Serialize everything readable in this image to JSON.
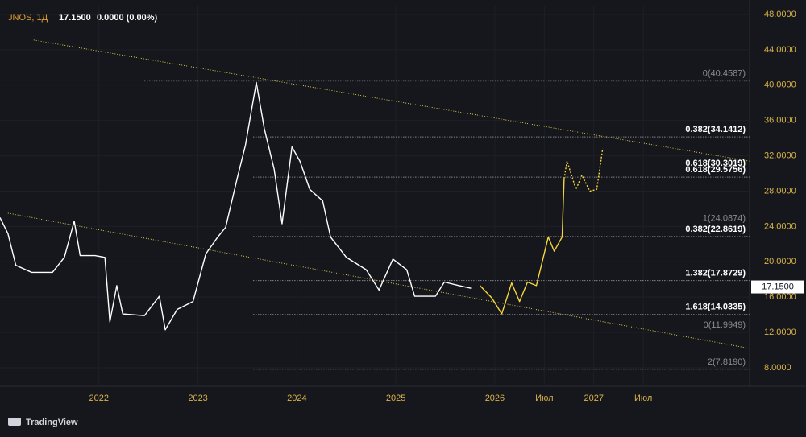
{
  "chart_data": {
    "type": "line",
    "symbol": "JNOS, 1Д",
    "price": "17.1500",
    "change": "0.0000 (0.00%)",
    "last_value": 17.15,
    "last_label": "17.1500",
    "brand": "TradingView",
    "xlim": [
      2021.0,
      2028.574
    ],
    "ylim": [
      5.9,
      48.91
    ],
    "xticks": [
      2022,
      2023,
      2024,
      2025,
      2026,
      {
        "value": 2026.5,
        "label": "Июл"
      },
      2027,
      {
        "value": 2027.5,
        "label": "Июл"
      }
    ],
    "yticks": [
      {
        "value": 8,
        "label": "8.0000"
      },
      {
        "value": 12,
        "label": "12.0000"
      },
      {
        "value": 16,
        "label": "16.0000"
      },
      {
        "value": 20,
        "label": "20.0000"
      },
      {
        "value": 24,
        "label": "24.0000"
      },
      {
        "value": 28,
        "label": "28.0000"
      },
      {
        "value": 32,
        "label": "32.0000"
      },
      {
        "value": 36,
        "label": "36.0000"
      },
      {
        "value": 40,
        "label": "40.0000"
      },
      {
        "value": 44,
        "label": "44.0000"
      },
      {
        "value": 48,
        "label": "48.0000"
      }
    ],
    "series": [
      {
        "color": "#ffffff",
        "dash": false,
        "x": [
          2021.0,
          2021.08,
          2021.16,
          2021.32,
          2021.53,
          2021.65,
          2021.75,
          2021.81,
          2021.96,
          2022.06,
          2022.11,
          2022.18,
          2022.24,
          2022.46,
          2022.61,
          2022.67,
          2022.79,
          2022.95,
          2023.08,
          2023.2,
          2023.28,
          2023.4,
          2023.48,
          2023.59,
          2023.67,
          2023.77,
          2023.85,
          2023.95,
          2024.03,
          2024.13,
          2024.26,
          2024.34,
          2024.5,
          2024.7,
          2024.83,
          2024.97,
          2025.11,
          2025.19,
          2025.4,
          2025.49,
          2025.64,
          2025.76
        ],
        "values": [
          25.0,
          23.2,
          19.6,
          18.8,
          18.8,
          20.5,
          24.6,
          20.7,
          20.7,
          20.5,
          13.2,
          17.3,
          14.1,
          13.9,
          16.1,
          12.3,
          14.6,
          15.5,
          20.9,
          22.8,
          23.9,
          29.6,
          33.2,
          40.3,
          35.1,
          30.5,
          24.3,
          33.0,
          31.4,
          28.2,
          26.9,
          22.8,
          20.5,
          19.1,
          16.8,
          20.3,
          19.1,
          16.1,
          16.1,
          17.7,
          17.3,
          17.0
        ]
      },
      {
        "color": "#f5d63c",
        "dash": false,
        "x": [
          2025.85,
          2025.97,
          2026.07,
          2026.17,
          2026.25,
          2026.33,
          2026.42,
          2026.54,
          2026.6,
          2026.68,
          2026.7
        ],
        "values": [
          17.3,
          15.9,
          14.1,
          17.6,
          15.5,
          17.7,
          17.3,
          22.8,
          21.2,
          22.8,
          29.4
        ]
      },
      {
        "color": "#f5d63c",
        "dash": true,
        "x": [
          2026.7,
          2026.73,
          2026.82,
          2026.88,
          2026.96,
          2027.03,
          2027.09
        ],
        "values": [
          29.4,
          31.4,
          28.2,
          29.8,
          28.0,
          28.2,
          32.8
        ]
      }
    ],
    "trendlines": [
      {
        "color": "#d8c94a",
        "x": [
          2021.34,
          2028.57
        ],
        "values": [
          45.1,
          31.4
        ]
      },
      {
        "color": "#d8c94a",
        "x": [
          2021.08,
          2028.57
        ],
        "values": [
          25.5,
          10.2
        ]
      }
    ],
    "fib_levels": [
      {
        "label": "0(40.4587)",
        "value": 40.4587,
        "color": "#8a8d96",
        "x_start": 2022.46
      },
      {
        "label": "0.382(34.1412)",
        "value": 34.1412,
        "color": "#ffffff",
        "x_start": 2023.56
      },
      {
        "label": "0.618(30.3019)",
        "value": 30.3019,
        "color": "#ffffff"
      },
      {
        "label": "0.618(29.5756)",
        "value": 29.5756,
        "color": "#ffffff",
        "x_start": 2023.56
      },
      {
        "label": "1(24.0874)",
        "value": 24.0874,
        "color": "#8a8d96"
      },
      {
        "label": "0.382(22.8619)",
        "value": 22.8619,
        "color": "#ffffff",
        "x_start": 2023.56
      },
      {
        "label": "1.382(17.8729)",
        "value": 17.8729,
        "color": "#ffffff",
        "x_start": 2023.56
      },
      {
        "label": "1.618(14.0335)",
        "value": 14.0335,
        "color": "#ffffff",
        "x_start": 2023.56
      },
      {
        "label": "0(11.9949)",
        "value": 11.9949,
        "color": "#8a8d96"
      },
      {
        "label": "2(7.8190)",
        "value": 7.819,
        "color": "#8a8d96",
        "x_start": 2023.56
      }
    ]
  }
}
